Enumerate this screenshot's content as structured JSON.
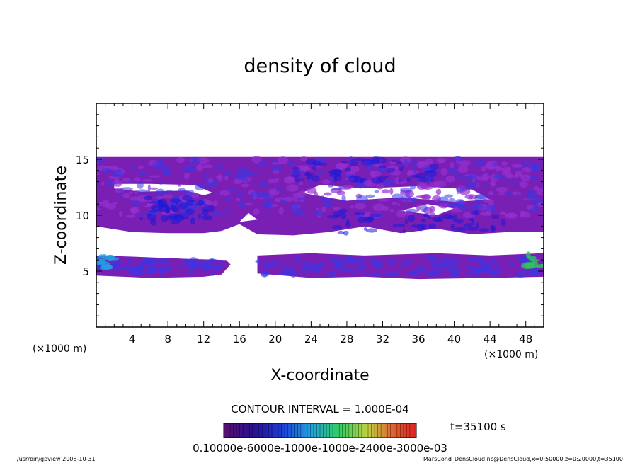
{
  "chart_data": {
    "type": "heatmap",
    "title": "density of cloud",
    "xlabel": "X-coordinate",
    "ylabel": "Z-coordinate",
    "x_unit": "(×1000 m)",
    "y_unit": "(×1000 m)",
    "xlim": [
      0,
      50
    ],
    "ylim": [
      0,
      20
    ],
    "x_ticks": [
      4,
      8,
      12,
      16,
      20,
      24,
      28,
      32,
      36,
      40,
      44,
      48
    ],
    "y_ticks": [
      5,
      10,
      15
    ],
    "contour_interval": "CONTOUR INTERVAL = 1.000E-04",
    "time_label": "t=35100 s",
    "colorbar_labels_text": "0.10000e-6000e-1000e-1000e-2400e-3000e-03",
    "colors": {
      "fill_main": "#7a1fb4",
      "fill_light": "#9430d0",
      "fill_blue": "#3a36e6",
      "fill_deep": "#1a1ad8"
    },
    "cloud_layers": [
      {
        "name": "upper",
        "z_min": 8.4,
        "z_max": 15.2
      },
      {
        "name": "lower",
        "z_min": 4.5,
        "z_max": 6.5
      }
    ]
  },
  "footer": {
    "program": "/usr/bin/gpview   2008-10-31",
    "source": "MarsCond_DensCloud.nc@DensCloud,x=0:50000,z=0:20000,t=35100"
  }
}
